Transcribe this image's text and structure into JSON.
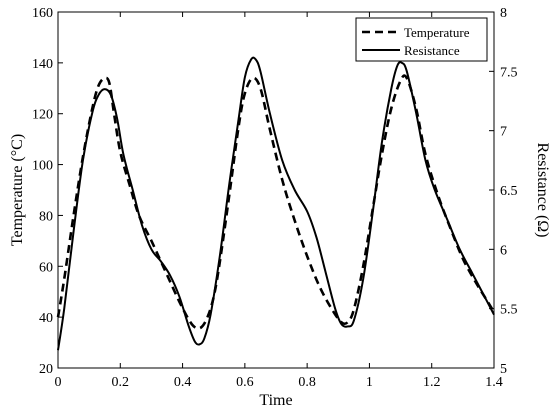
{
  "chart_data": {
    "type": "line",
    "xlabel": "Time",
    "ylabel_left": "Temperature (°C)",
    "ylabel_right": "Resistance (Ω)",
    "xlim": [
      0,
      1.4
    ],
    "ylim_left": [
      20,
      160
    ],
    "ylim_right": [
      5,
      8
    ],
    "x_ticks": [
      "0",
      "0.2",
      "0.4",
      "0.6",
      "0.8",
      "1",
      "1.2",
      "1.4"
    ],
    "y_ticks_left": [
      "20",
      "40",
      "60",
      "80",
      "100",
      "120",
      "140",
      "160"
    ],
    "y_ticks_right": [
      "5",
      "5.5",
      "6",
      "6.5",
      "7",
      "7.5",
      "8"
    ],
    "grid": false,
    "legend_position": "top-right",
    "series": [
      {
        "name": "Temperature",
        "axis": "left",
        "line_style": "dashed",
        "color": "#000000",
        "x": [
          0,
          0.02,
          0.05,
          0.08,
          0.11,
          0.13,
          0.15,
          0.165,
          0.18,
          0.2,
          0.23,
          0.26,
          0.3,
          0.33,
          0.36,
          0.39,
          0.42,
          0.44,
          0.46,
          0.48,
          0.5,
          0.52,
          0.55,
          0.58,
          0.6,
          0.625,
          0.65,
          0.68,
          0.72,
          0.76,
          0.8,
          0.84,
          0.88,
          0.91,
          0.93,
          0.95,
          0.98,
          1.01,
          1.04,
          1.07,
          1.1,
          1.12,
          1.15,
          1.18,
          1.22,
          1.26,
          1.3,
          1.34,
          1.37,
          1.4
        ],
        "y": [
          40,
          55,
          80,
          103,
          122,
          131,
          134,
          132,
          120,
          105,
          92,
          80,
          70,
          62,
          54,
          46,
          39,
          36,
          36,
          40,
          48,
          62,
          88,
          115,
          128,
          134,
          130,
          114,
          94,
          78,
          64,
          52,
          43,
          38,
          38,
          43,
          60,
          82,
          104,
          122,
          133,
          134,
          122,
          104,
          88,
          75,
          63,
          54,
          48,
          42
        ]
      },
      {
        "name": "Resistance",
        "axis": "right",
        "line_style": "solid",
        "color": "#000000",
        "x": [
          0,
          0.02,
          0.05,
          0.08,
          0.11,
          0.13,
          0.15,
          0.17,
          0.19,
          0.21,
          0.24,
          0.27,
          0.3,
          0.33,
          0.36,
          0.39,
          0.42,
          0.44,
          0.455,
          0.47,
          0.49,
          0.52,
          0.55,
          0.58,
          0.6,
          0.62,
          0.635,
          0.65,
          0.68,
          0.72,
          0.76,
          0.8,
          0.83,
          0.86,
          0.89,
          0.91,
          0.93,
          0.95,
          0.98,
          1.01,
          1.04,
          1.07,
          1.09,
          1.105,
          1.12,
          1.15,
          1.18,
          1.21,
          1.25,
          1.29,
          1.33,
          1.36,
          1.4
        ],
        "y": [
          5.15,
          5.5,
          6.15,
          6.75,
          7.15,
          7.3,
          7.35,
          7.3,
          7.1,
          6.8,
          6.5,
          6.2,
          6.0,
          5.9,
          5.78,
          5.6,
          5.35,
          5.22,
          5.2,
          5.25,
          5.45,
          5.95,
          6.55,
          7.1,
          7.45,
          7.6,
          7.6,
          7.5,
          7.15,
          6.75,
          6.5,
          6.32,
          6.1,
          5.8,
          5.5,
          5.37,
          5.35,
          5.4,
          5.75,
          6.3,
          6.9,
          7.35,
          7.55,
          7.57,
          7.5,
          7.15,
          6.75,
          6.5,
          6.25,
          6.0,
          5.8,
          5.65,
          5.45
        ]
      }
    ]
  }
}
